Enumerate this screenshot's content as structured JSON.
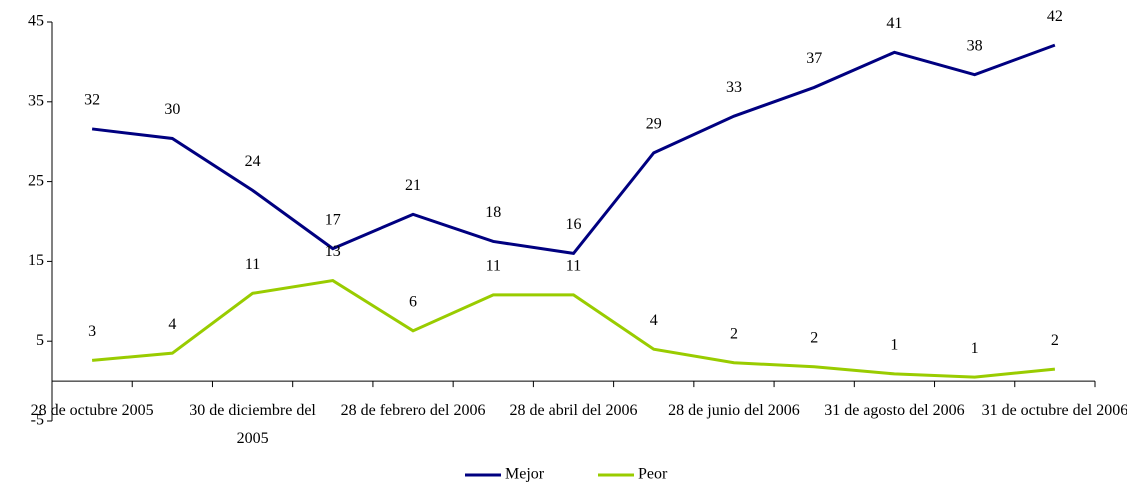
{
  "chart_data": {
    "type": "line",
    "categories": [
      "28 de octubre 2005",
      null,
      "30 de diciembre del 2005",
      null,
      "28 de febrero del 2006",
      null,
      "28 de abril del 2006",
      null,
      "28 de junio del 2006",
      null,
      "31 de agosto del 2006",
      null,
      "31 de octubre del 2006"
    ],
    "series": [
      {
        "name": "Mejor",
        "color": "#000080",
        "values": [
          31.6,
          30.4,
          23.9,
          16.6,
          20.9,
          17.5,
          16.0,
          28.6,
          33.2,
          36.8,
          41.2,
          38.4,
          42.1
        ],
        "value_labels": [
          "32",
          "30",
          "24",
          "17",
          "21",
          "18",
          "16",
          "29",
          "33",
          "37",
          "41",
          "38",
          "42"
        ]
      },
      {
        "name": "Peor",
        "color": "#99cc00",
        "values": [
          2.6,
          3.5,
          11.0,
          12.6,
          6.3,
          10.8,
          10.8,
          4.0,
          2.3,
          1.8,
          0.9,
          0.5,
          1.5
        ],
        "value_labels": [
          "3",
          "4",
          "11",
          "13",
          "6",
          "11",
          "11",
          "4",
          "2",
          "2",
          "1",
          "1",
          "2"
        ]
      }
    ],
    "ylim": [
      -5,
      45
    ],
    "yticks": [
      -5,
      5,
      15,
      25,
      35,
      45
    ],
    "grid": false,
    "legend": "bottom"
  }
}
